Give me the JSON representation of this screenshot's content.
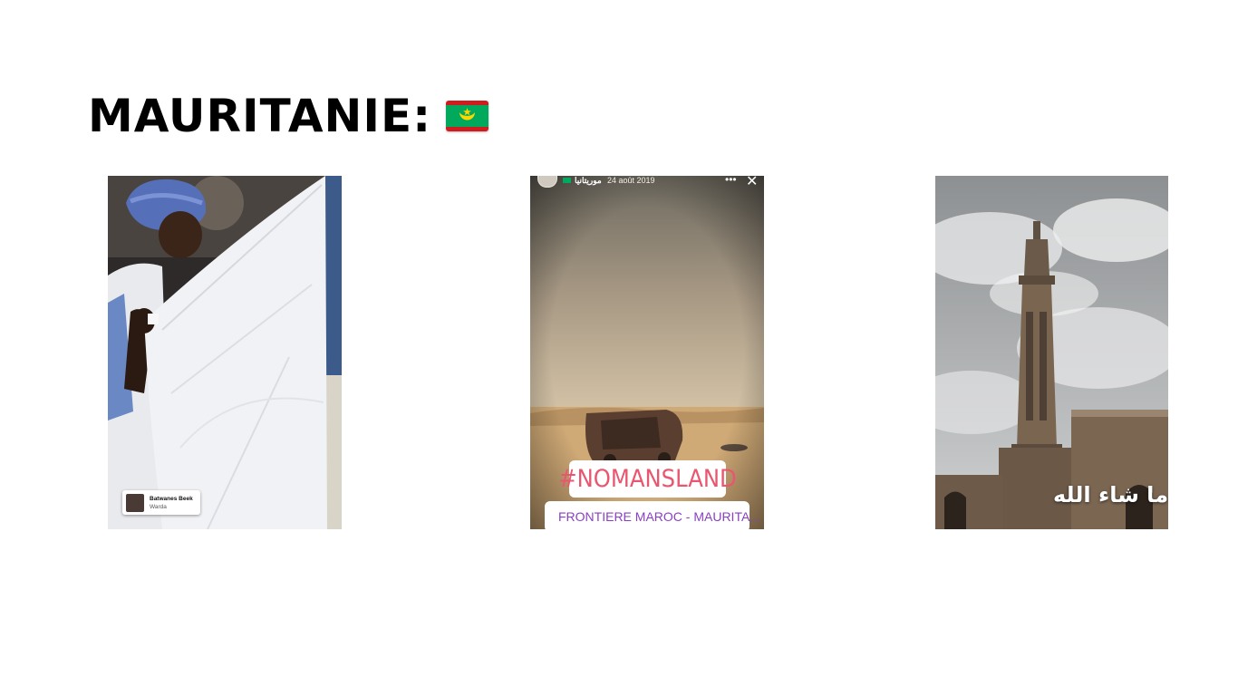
{
  "slide": {
    "title": "MAURITANIE:",
    "flag_icon": "mauritania-flag-icon",
    "colors": {
      "flag_green": "#00A95C",
      "flag_red": "#D01C1F",
      "flag_gold": "#FFD700"
    }
  },
  "panel_1": {
    "music_sticker": {
      "title": "Batwanes Beek",
      "artist": "Warda"
    }
  },
  "panel_2": {
    "header": {
      "username": "موريتانيا",
      "date": "24 août 2019"
    },
    "hashtag": "#NOMANSLAND",
    "location": "FRONTIERE MAROC - MAURITA...",
    "colors": {
      "hashtag": "#E9566F",
      "location": "#8A3FC2"
    }
  },
  "panel_3": {
    "caption": "ما شاء الله"
  }
}
